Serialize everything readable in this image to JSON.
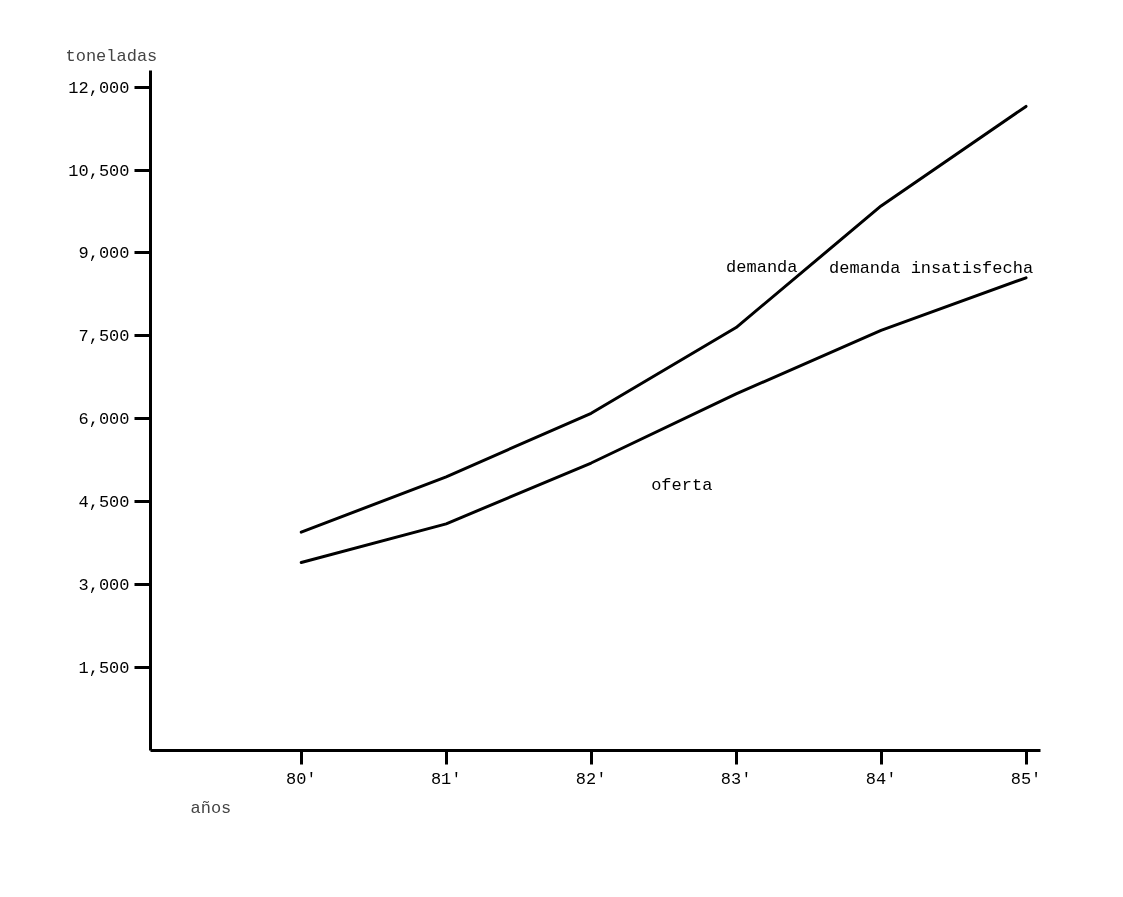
{
  "chart_data": {
    "type": "line",
    "xlabel": "años",
    "ylabel": "toneladas",
    "x": [
      80,
      81,
      82,
      83,
      84,
      85
    ],
    "xlim": [
      78.96,
      85.1
    ],
    "ylim": [
      0,
      12300
    ],
    "xticks": [
      {
        "value": 80,
        "label": "80'"
      },
      {
        "value": 81,
        "label": "81'"
      },
      {
        "value": 82,
        "label": "82'"
      },
      {
        "value": 83,
        "label": "83'"
      },
      {
        "value": 84,
        "label": "84'"
      },
      {
        "value": 85,
        "label": "85'"
      }
    ],
    "yticks": [
      {
        "value": 1500,
        "label": "1,500"
      },
      {
        "value": 3000,
        "label": "3,000"
      },
      {
        "value": 4500,
        "label": "4,500"
      },
      {
        "value": 6000,
        "label": "6,000"
      },
      {
        "value": 7500,
        "label": "7,500"
      },
      {
        "value": 9000,
        "label": "9,000"
      },
      {
        "value": 10500,
        "label": "10,500"
      },
      {
        "value": 12000,
        "label": "12,000"
      }
    ],
    "series": [
      {
        "name": "demanda",
        "color": "#000000",
        "values": [
          3950,
          4950,
          6100,
          7650,
          9850,
          11650
        ]
      },
      {
        "name": "oferta",
        "color": "#000000",
        "values": [
          3400,
          4100,
          5200,
          6450,
          7600,
          8550
        ]
      }
    ],
    "annotations": [
      "demanda insatisfecha"
    ],
    "grid": false,
    "marker": "none",
    "line_style": "solid"
  }
}
